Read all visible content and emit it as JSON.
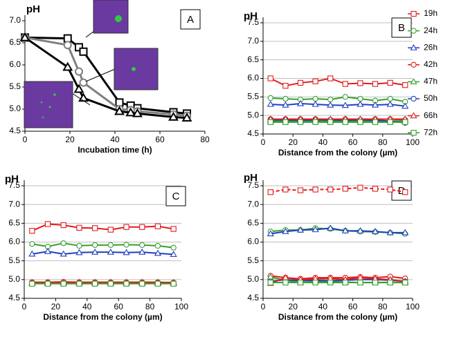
{
  "chart_data": [
    {
      "type": "line",
      "label": "A",
      "ylabel": "pH",
      "xlabel": "Incubation time (h)",
      "xlim": [
        0,
        80
      ],
      "xticks": [
        0,
        20,
        40,
        60,
        80
      ],
      "ylim": [
        4.5,
        7.0
      ],
      "yticks": [
        4.5,
        {
          "value": 5.0,
          "label": "5.0"
        },
        5.5,
        {
          "value": 6.0,
          "label": "6.0"
        },
        6.5,
        {
          "value": 7.0,
          "label": "7.0"
        }
      ],
      "grid": false,
      "x": [
        0,
        19,
        24,
        26,
        42,
        47,
        50,
        66,
        72
      ],
      "series": [
        {
          "color": "#000000",
          "marker": "square",
          "values": [
            6.62,
            6.6,
            6.4,
            6.3,
            5.15,
            5.08,
            5.02,
            4.93,
            4.9
          ]
        },
        {
          "color": "#7f7f7f",
          "marker": "circle",
          "values": [
            6.62,
            6.45,
            5.85,
            5.6,
            5.0,
            4.98,
            4.95,
            4.88,
            4.85
          ]
        },
        {
          "color": "#000000",
          "marker": "triangle",
          "values": [
            6.62,
            5.95,
            5.45,
            5.25,
            4.95,
            4.92,
            4.9,
            4.82,
            4.8
          ]
        }
      ]
    },
    {
      "type": "line",
      "label": "B",
      "ylabel": "pH",
      "xlabel": "Distance from the colony (µm)",
      "xlim": [
        0,
        100
      ],
      "xticks": [
        0,
        20,
        40,
        60,
        80,
        100
      ],
      "ylim": [
        4.5,
        7.5
      ],
      "yticks": [
        4.5,
        {
          "value": 5.0,
          "label": "5.0"
        },
        5.5,
        {
          "value": 6.0,
          "label": "6.0"
        },
        6.5,
        {
          "value": 7.0,
          "label": "7.0"
        },
        7.5
      ],
      "grid": true,
      "legend": "right",
      "x": [
        5,
        15,
        25,
        35,
        45,
        55,
        65,
        75,
        85,
        95
      ],
      "series": [
        {
          "name": "19h",
          "color": "#e31a1c",
          "marker": "square",
          "values": [
            6.0,
            5.8,
            5.88,
            5.92,
            6.0,
            5.85,
            5.87,
            5.85,
            5.88,
            5.82
          ]
        },
        {
          "name": "24h",
          "color": "#33a02c",
          "marker": "circle",
          "values": [
            5.47,
            5.45,
            5.43,
            5.45,
            5.43,
            5.5,
            5.45,
            5.4,
            5.45,
            5.37
          ]
        },
        {
          "name": "26h",
          "color": "#1f3fbf",
          "marker": "triangle",
          "values": [
            5.3,
            5.28,
            5.32,
            5.3,
            5.28,
            5.27,
            5.3,
            5.28,
            5.3,
            5.25
          ]
        },
        {
          "name": "42h",
          "color": "#e31a1c",
          "marker": "circle",
          "values": [
            4.9,
            4.9,
            4.9,
            4.9,
            4.88,
            4.9,
            4.88,
            4.9,
            4.9,
            4.88
          ]
        },
        {
          "name": "47h",
          "color": "#33a02c",
          "marker": "triangle",
          "values": [
            4.85,
            4.85,
            4.85,
            4.85,
            4.85,
            4.85,
            4.85,
            4.85,
            4.85,
            4.85
          ]
        },
        {
          "name": "50h",
          "color": "#1f3fbf",
          "marker": "circle",
          "values": [
            4.88,
            4.88,
            4.87,
            4.88,
            4.88,
            4.87,
            4.88,
            4.87,
            4.85,
            4.8
          ]
        },
        {
          "name": "66h",
          "color": "#e31a1c",
          "marker": "triangle",
          "values": [
            4.9,
            4.9,
            4.9,
            4.9,
            4.9,
            4.9,
            4.9,
            4.9,
            4.9,
            4.9
          ]
        },
        {
          "name": "72h",
          "color": "#33a02c",
          "marker": "square",
          "values": [
            4.82,
            4.82,
            4.82,
            4.82,
            4.82,
            4.82,
            4.82,
            4.82,
            4.82,
            4.82
          ]
        }
      ]
    },
    {
      "type": "line",
      "label": "C",
      "ylabel": "pH",
      "xlabel": "Distance from the colony (µm)",
      "xlim": [
        0,
        100
      ],
      "xticks": [
        0,
        20,
        40,
        60,
        80,
        100
      ],
      "ylim": [
        4.5,
        7.5
      ],
      "yticks": [
        4.5,
        {
          "value": 5.0,
          "label": "5.0"
        },
        5.5,
        {
          "value": 6.0,
          "label": "6.0"
        },
        6.5,
        {
          "value": 7.0,
          "label": "7.0"
        },
        7.5
      ],
      "grid": true,
      "x": [
        5,
        15,
        25,
        35,
        45,
        55,
        65,
        75,
        85,
        95
      ],
      "series": [
        {
          "color": "#e31a1c",
          "marker": "square",
          "values": [
            6.3,
            6.48,
            6.45,
            6.38,
            6.37,
            6.33,
            6.4,
            6.4,
            6.42,
            6.35
          ]
        },
        {
          "color": "#33a02c",
          "marker": "circle",
          "values": [
            5.95,
            5.88,
            5.97,
            5.9,
            5.92,
            5.92,
            5.93,
            5.92,
            5.9,
            5.85
          ]
        },
        {
          "color": "#1f3fbf",
          "marker": "triangle",
          "values": [
            5.68,
            5.75,
            5.68,
            5.72,
            5.73,
            5.73,
            5.72,
            5.73,
            5.7,
            5.67
          ]
        },
        {
          "color": "#e31a1c",
          "marker": "circle",
          "values": [
            4.93,
            4.93,
            4.94,
            4.93,
            4.93,
            4.93,
            4.93,
            4.93,
            4.93,
            4.92
          ]
        },
        {
          "color": "#33a02c",
          "marker": "triangle",
          "values": [
            4.9,
            4.9,
            4.9,
            4.9,
            4.9,
            4.9,
            4.9,
            4.9,
            4.9,
            4.9
          ]
        },
        {
          "color": "#1f3fbf",
          "marker": "circle",
          "values": [
            4.91,
            4.91,
            4.91,
            4.91,
            4.91,
            4.91,
            4.91,
            4.91,
            4.91,
            4.91
          ]
        },
        {
          "color": "#e31a1c",
          "marker": "triangle",
          "values": [
            4.92,
            4.92,
            4.92,
            4.92,
            4.92,
            4.92,
            4.92,
            4.92,
            4.92,
            4.92
          ]
        },
        {
          "color": "#33a02c",
          "marker": "square",
          "values": [
            4.89,
            4.89,
            4.89,
            4.89,
            4.89,
            4.89,
            4.89,
            4.89,
            4.89,
            4.89
          ]
        }
      ]
    },
    {
      "type": "line",
      "label": "D",
      "ylabel": "pH",
      "xlabel": "Distance from the colony (µm)",
      "xlim": [
        0,
        100
      ],
      "xticks": [
        0,
        20,
        40,
        60,
        80,
        100
      ],
      "ylim": [
        4.5,
        7.5
      ],
      "yticks": [
        4.5,
        {
          "value": 5.0,
          "label": "5.0"
        },
        5.5,
        {
          "value": 6.0,
          "label": "6.0"
        },
        6.5,
        {
          "value": 7.0,
          "label": "7.0"
        },
        7.5
      ],
      "grid": true,
      "x": [
        5,
        15,
        25,
        35,
        45,
        55,
        65,
        75,
        85,
        95
      ],
      "series": [
        {
          "color": "#e31a1c",
          "marker": "square",
          "dashed": true,
          "values": [
            7.33,
            7.4,
            7.38,
            7.4,
            7.4,
            7.42,
            7.45,
            7.42,
            7.4,
            7.33
          ]
        },
        {
          "color": "#33a02c",
          "marker": "circle",
          "values": [
            6.28,
            6.32,
            6.32,
            6.37,
            6.35,
            6.3,
            6.28,
            6.27,
            6.25,
            6.22
          ]
        },
        {
          "color": "#1f3fbf",
          "marker": "triangle",
          "values": [
            6.22,
            6.28,
            6.32,
            6.33,
            6.37,
            6.3,
            6.3,
            6.28,
            6.25,
            6.25
          ]
        },
        {
          "color": "#e31a1c",
          "marker": "circle",
          "values": [
            5.1,
            5.05,
            5.02,
            5.05,
            5.05,
            5.05,
            5.07,
            5.05,
            5.08,
            5.03
          ]
        },
        {
          "color": "#33a02c",
          "marker": "triangle",
          "values": [
            5.07,
            4.98,
            4.92,
            4.95,
            4.95,
            4.93,
            4.92,
            4.92,
            4.92,
            4.92
          ]
        },
        {
          "color": "#1f3fbf",
          "marker": "circle",
          "values": [
            4.95,
            5.0,
            4.97,
            4.98,
            4.97,
            4.98,
            5.0,
            5.0,
            4.98,
            4.95
          ]
        },
        {
          "color": "#e31a1c",
          "marker": "triangle",
          "values": [
            4.9,
            5.05,
            5.0,
            5.02,
            5.03,
            5.0,
            5.05,
            5.02,
            5.0,
            4.95
          ]
        },
        {
          "color": "#33a02c",
          "marker": "square",
          "values": [
            4.92,
            4.92,
            4.92,
            4.92,
            4.92,
            4.92,
            4.92,
            4.92,
            4.92,
            4.92
          ]
        }
      ]
    }
  ]
}
